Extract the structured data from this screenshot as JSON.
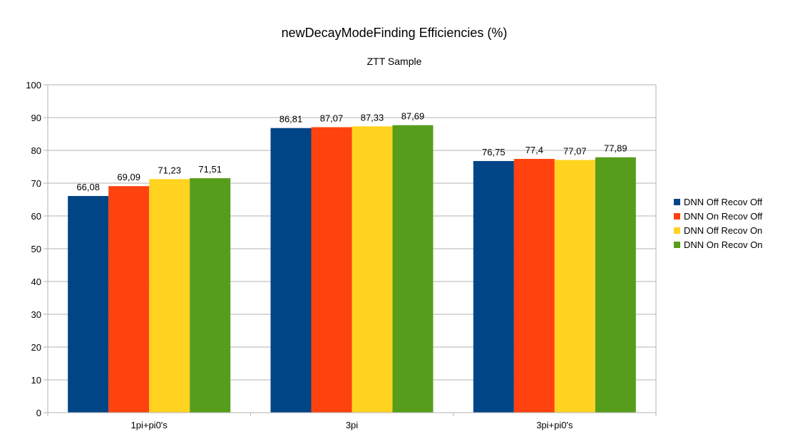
{
  "chart_data": {
    "type": "bar",
    "title": "newDecayModeFinding Efficiencies (%)",
    "subtitle": "ZTT Sample",
    "xlabel": "",
    "ylabel": "",
    "categories": [
      "1pi+pi0's",
      "3pi",
      "3pi+pi0's"
    ],
    "ylim": [
      0,
      100
    ],
    "yticks": [
      0,
      10,
      20,
      30,
      40,
      50,
      60,
      70,
      80,
      90,
      100
    ],
    "grid": true,
    "legend_position": "right",
    "decimal_separator": ",",
    "series": [
      {
        "name": "DNN Off Recov Off",
        "color": "#004586",
        "values": [
          66.08,
          86.81,
          76.75
        ]
      },
      {
        "name": "DNN On Recov Off",
        "color": "#ff420e",
        "values": [
          69.09,
          87.07,
          77.4
        ]
      },
      {
        "name": "DNN Off Recov On",
        "color": "#ffd320",
        "values": [
          71.23,
          87.33,
          77.07
        ]
      },
      {
        "name": "DNN On Recov On",
        "color": "#579d1c",
        "values": [
          71.51,
          87.69,
          77.89
        ]
      }
    ]
  }
}
